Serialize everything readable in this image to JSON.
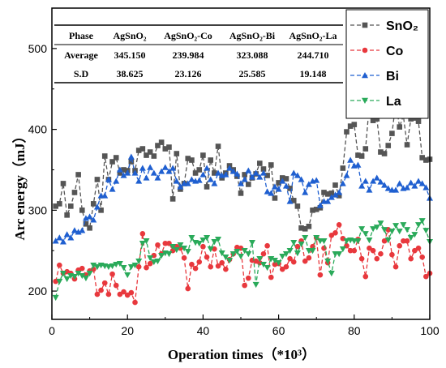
{
  "chart_data": {
    "type": "line",
    "xlabel": "Operation times（*10³）",
    "ylabel": "Arc energy（mJ）",
    "xlim": [
      0,
      100
    ],
    "ylim": [
      165,
      550
    ],
    "xticks": [
      0,
      20,
      40,
      60,
      80,
      100
    ],
    "yticks": [
      200,
      300,
      400,
      500
    ],
    "legend_position": "top-right",
    "series": [
      {
        "name": "SnO₂",
        "color": "#555555",
        "marker": "square",
        "x": [
          1,
          2,
          3,
          4,
          5,
          6,
          7,
          8,
          9,
          10,
          11,
          12,
          13,
          14,
          15,
          16,
          17,
          18,
          19,
          20,
          21,
          22,
          23,
          24,
          25,
          26,
          27,
          28,
          29,
          30,
          31,
          32,
          33,
          34,
          35,
          36,
          37,
          38,
          39,
          40,
          41,
          42,
          43,
          44,
          45,
          46,
          47,
          48,
          49,
          50,
          51,
          52,
          53,
          54,
          55,
          56,
          57,
          58,
          59,
          60,
          61,
          62,
          63,
          64,
          65,
          66,
          67,
          68,
          69,
          70,
          71,
          72,
          73,
          74,
          75,
          76,
          77,
          78,
          79,
          80,
          81,
          82,
          83,
          84,
          85,
          86,
          87,
          88,
          89,
          90,
          91,
          92,
          93,
          94,
          95,
          96,
          97,
          98,
          99,
          100
        ],
        "y": [
          305,
          308,
          333,
          294,
          305,
          322,
          344,
          300,
          283,
          278,
          308,
          338,
          300,
          367,
          338,
          360,
          365,
          346,
          350,
          349,
          360,
          349,
          374,
          376,
          368,
          372,
          367,
          380,
          384,
          376,
          378,
          314,
          370,
          326,
          333,
          364,
          362,
          346,
          350,
          368,
          329,
          362,
          346,
          379,
          340,
          346,
          355,
          350,
          342,
          321,
          344,
          332,
          340,
          345,
          358,
          351,
          343,
          356,
          315,
          334,
          340,
          339,
          327,
          312,
          305,
          278,
          277,
          280,
          300,
          301,
          303,
          322,
          320,
          321,
          331,
          318,
          352,
          397,
          404,
          406,
          368,
          367,
          376,
          430,
          411,
          413,
          372,
          370,
          380,
          395,
          433,
          403,
          417,
          381,
          413,
          414,
          410,
          365,
          362,
          363
        ]
      },
      {
        "name": "Co",
        "color": "#e8383d",
        "marker": "circle",
        "x": [
          1,
          2,
          3,
          4,
          5,
          6,
          7,
          8,
          9,
          10,
          11,
          12,
          13,
          14,
          15,
          16,
          17,
          18,
          19,
          20,
          21,
          22,
          23,
          24,
          25,
          26,
          27,
          28,
          29,
          30,
          31,
          32,
          33,
          34,
          35,
          36,
          37,
          38,
          39,
          40,
          41,
          42,
          43,
          44,
          45,
          46,
          47,
          48,
          49,
          50,
          51,
          52,
          53,
          54,
          55,
          56,
          57,
          58,
          59,
          60,
          61,
          62,
          63,
          64,
          65,
          66,
          67,
          68,
          69,
          70,
          71,
          72,
          73,
          74,
          75,
          76,
          77,
          78,
          79,
          80,
          81,
          82,
          83,
          84,
          85,
          86,
          87,
          88,
          89,
          90,
          91,
          92,
          93,
          94,
          95,
          96,
          97,
          98,
          99,
          100
        ],
        "y": [
          212,
          232,
          222,
          224,
          222,
          215,
          226,
          228,
          220,
          225,
          227,
          196,
          201,
          210,
          196,
          221,
          207,
          196,
          199,
          195,
          198,
          186,
          230,
          271,
          229,
          234,
          244,
          257,
          246,
          259,
          259,
          250,
          255,
          253,
          241,
          203,
          233,
          228,
          236,
          255,
          242,
          230,
          252,
          231,
          235,
          227,
          239,
          246,
          254,
          253,
          207,
          216,
          238,
          237,
          235,
          246,
          256,
          217,
          233,
          234,
          227,
          230,
          240,
          236,
          255,
          262,
          237,
          241,
          255,
          266,
          220,
          253,
          235,
          269,
          272,
          282,
          265,
          256,
          250,
          250,
          264,
          240,
          218,
          253,
          250,
          240,
          246,
          262,
          276,
          245,
          230,
          256,
          262,
          262,
          240,
          250,
          253,
          242,
          218,
          222
        ]
      },
      {
        "name": "Bi",
        "color": "#1f5fd0",
        "marker": "triangle-up",
        "x": [
          1,
          2,
          3,
          4,
          5,
          6,
          7,
          8,
          9,
          10,
          11,
          12,
          13,
          14,
          15,
          16,
          17,
          18,
          19,
          20,
          21,
          22,
          23,
          24,
          25,
          26,
          27,
          28,
          29,
          30,
          31,
          32,
          33,
          34,
          35,
          36,
          37,
          38,
          39,
          40,
          41,
          42,
          43,
          44,
          45,
          46,
          47,
          48,
          49,
          50,
          51,
          52,
          53,
          54,
          55,
          56,
          57,
          58,
          59,
          60,
          61,
          62,
          63,
          64,
          65,
          66,
          67,
          68,
          69,
          70,
          71,
          72,
          73,
          74,
          75,
          76,
          77,
          78,
          79,
          80,
          81,
          82,
          83,
          84,
          85,
          86,
          87,
          88,
          89,
          90,
          91,
          92,
          93,
          94,
          95,
          96,
          97,
          98,
          99,
          100
        ],
        "y": [
          262,
          266,
          261,
          270,
          266,
          275,
          273,
          275,
          290,
          292,
          288,
          304,
          318,
          318,
          338,
          326,
          336,
          350,
          343,
          346,
          366,
          346,
          336,
          352,
          340,
          353,
          346,
          340,
          348,
          353,
          348,
          352,
          336,
          329,
          333,
          333,
          338,
          336,
          337,
          344,
          352,
          338,
          333,
          346,
          343,
          344,
          352,
          348,
          345,
          333,
          338,
          349,
          341,
          346,
          341,
          346,
          323,
          321,
          329,
          326,
          336,
          330,
          311,
          346,
          343,
          338,
          322,
          332,
          336,
          337,
          306,
          311,
          311,
          316,
          319,
          322,
          333,
          343,
          362,
          355,
          356,
          330,
          336,
          325,
          336,
          340,
          335,
          331,
          327,
          325,
          325,
          333,
          327,
          328,
          334,
          330,
          336,
          333,
          328,
          315
        ]
      },
      {
        "name": "La",
        "color": "#2aaa5a",
        "marker": "triangle-down",
        "x": [
          1,
          2,
          3,
          4,
          5,
          6,
          7,
          8,
          9,
          10,
          11,
          12,
          13,
          14,
          15,
          16,
          17,
          18,
          19,
          20,
          21,
          22,
          23,
          24,
          25,
          26,
          27,
          28,
          29,
          30,
          31,
          32,
          33,
          34,
          35,
          36,
          37,
          38,
          39,
          40,
          41,
          42,
          43,
          44,
          45,
          46,
          47,
          48,
          49,
          50,
          51,
          52,
          53,
          54,
          55,
          56,
          57,
          58,
          59,
          60,
          61,
          62,
          63,
          64,
          65,
          66,
          67,
          68,
          69,
          70,
          71,
          72,
          73,
          74,
          75,
          76,
          77,
          78,
          79,
          80,
          81,
          82,
          83,
          84,
          85,
          86,
          87,
          88,
          89,
          90,
          91,
          92,
          93,
          94,
          95,
          96,
          97,
          98,
          99,
          100
        ],
        "y": [
          192,
          212,
          222,
          215,
          219,
          218,
          222,
          219,
          216,
          222,
          232,
          230,
          232,
          231,
          230,
          231,
          233,
          234,
          229,
          220,
          230,
          232,
          237,
          259,
          262,
          241,
          236,
          237,
          244,
          247,
          246,
          255,
          251,
          257,
          253,
          249,
          266,
          260,
          259,
          263,
          266,
          252,
          261,
          264,
          247,
          242,
          238,
          246,
          249,
          243,
          250,
          246,
          260,
          208,
          240,
          233,
          229,
          240,
          238,
          235,
          243,
          246,
          250,
          260,
          247,
          258,
          266,
          250,
          250,
          266,
          262,
          262,
          237,
          222,
          246,
          246,
          252,
          262,
          263,
          262,
          262,
          277,
          271,
          263,
          277,
          279,
          284,
          276,
          263,
          274,
          281,
          274,
          282,
          276,
          266,
          270,
          282,
          287,
          275,
          261
        ]
      }
    ],
    "table": {
      "headers": [
        "Phase",
        "AgSnO₂",
        "AgSnO₂-Co",
        "AgSnO₂-Bi",
        "AgSnO₂-La"
      ],
      "rows": [
        [
          "Average",
          "345.150",
          "239.984",
          "323.088",
          "244.710"
        ],
        [
          "S.D",
          "38.625",
          "23.126",
          "25.585",
          "19.148"
        ]
      ]
    }
  }
}
